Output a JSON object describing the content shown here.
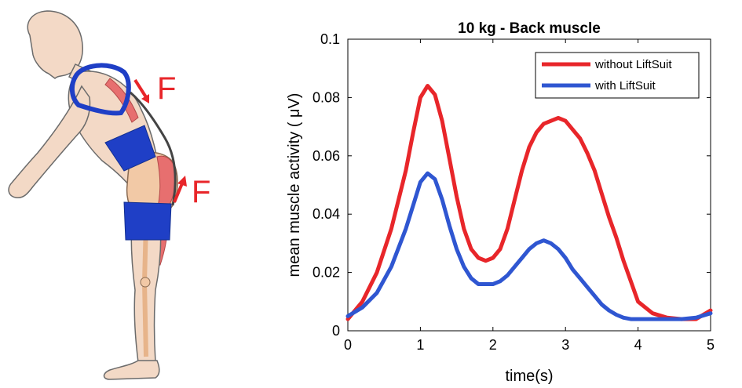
{
  "illustration": {
    "force_label_top": "F",
    "force_label_bottom": "F",
    "colors": {
      "force": "#e8262a",
      "suit": "#1f3fc6",
      "body": "#f3d9c6",
      "outline": "#6b6b6b",
      "muscle": "#e76f6f"
    }
  },
  "chart_data": {
    "type": "line",
    "title": "10 kg - Back muscle",
    "xlabel": "time(s)",
    "ylabel": "mean muscle activity ( μV)",
    "xlim": [
      0,
      5
    ],
    "ylim": [
      0,
      0.1
    ],
    "xticks": [
      0,
      1,
      2,
      3,
      4,
      5
    ],
    "yticks": [
      0,
      0.02,
      0.04,
      0.06,
      0.08,
      0.1
    ],
    "xtick_labels": [
      "0",
      "1",
      "2",
      "3",
      "4",
      "5"
    ],
    "ytick_labels": [
      "0",
      "0.02",
      "0.04",
      "0.06",
      "0.08",
      "0.1"
    ],
    "legend_position": "top-right",
    "grid": false,
    "series": [
      {
        "name": "without LiftSuit",
        "color": "#e8262a",
        "x": [
          0,
          0.2,
          0.4,
          0.6,
          0.8,
          0.9,
          1.0,
          1.1,
          1.2,
          1.3,
          1.4,
          1.5,
          1.6,
          1.7,
          1.8,
          1.9,
          2.0,
          2.1,
          2.2,
          2.3,
          2.4,
          2.5,
          2.6,
          2.7,
          2.8,
          2.9,
          3.0,
          3.1,
          3.2,
          3.3,
          3.4,
          3.5,
          3.6,
          3.7,
          3.8,
          3.9,
          4.0,
          4.2,
          4.4,
          4.6,
          4.8,
          5.0
        ],
        "y": [
          0.004,
          0.01,
          0.02,
          0.035,
          0.055,
          0.068,
          0.08,
          0.084,
          0.081,
          0.072,
          0.059,
          0.046,
          0.035,
          0.028,
          0.025,
          0.024,
          0.025,
          0.028,
          0.035,
          0.045,
          0.055,
          0.063,
          0.068,
          0.071,
          0.072,
          0.073,
          0.072,
          0.069,
          0.066,
          0.061,
          0.055,
          0.047,
          0.039,
          0.032,
          0.024,
          0.017,
          0.01,
          0.006,
          0.0045,
          0.004,
          0.004,
          0.007
        ]
      },
      {
        "name": "with LiftSuit",
        "color": "#2f56d1",
        "x": [
          0,
          0.2,
          0.4,
          0.6,
          0.8,
          0.9,
          1.0,
          1.1,
          1.2,
          1.3,
          1.4,
          1.5,
          1.6,
          1.7,
          1.8,
          1.9,
          2.0,
          2.1,
          2.2,
          2.3,
          2.4,
          2.5,
          2.6,
          2.7,
          2.8,
          2.9,
          3.0,
          3.1,
          3.2,
          3.3,
          3.4,
          3.5,
          3.6,
          3.7,
          3.8,
          3.9,
          4.0,
          4.2,
          4.4,
          4.6,
          4.8,
          5.0
        ],
        "y": [
          0.005,
          0.008,
          0.013,
          0.022,
          0.035,
          0.043,
          0.051,
          0.054,
          0.052,
          0.045,
          0.036,
          0.028,
          0.022,
          0.018,
          0.016,
          0.016,
          0.016,
          0.017,
          0.019,
          0.022,
          0.025,
          0.028,
          0.03,
          0.031,
          0.03,
          0.028,
          0.025,
          0.021,
          0.018,
          0.015,
          0.012,
          0.009,
          0.007,
          0.0055,
          0.0045,
          0.004,
          0.004,
          0.004,
          0.004,
          0.004,
          0.0045,
          0.006
        ]
      }
    ]
  }
}
